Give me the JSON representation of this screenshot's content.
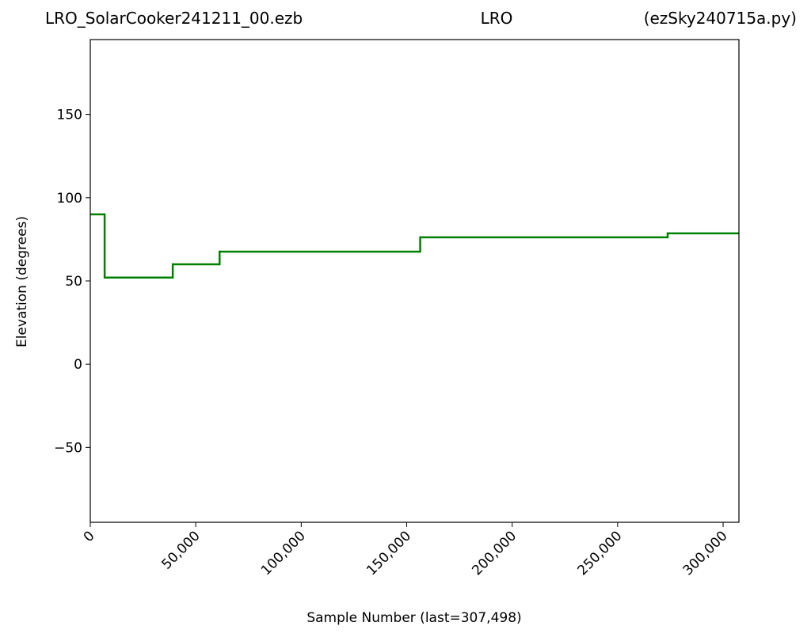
{
  "chart_data": {
    "type": "step",
    "title_left": "LRO_SolarCooker241211_00.ezb",
    "title": "LRO",
    "title_right": "(ezSky240715a.py)",
    "x_label": "Sample Number (last=307,498)",
    "y_label": "Elevation (degrees)",
    "x": [
      0,
      6800,
      39100,
      61300,
      156400,
      273700
    ],
    "values": [
      90,
      52,
      60,
      67.6,
      76.2,
      78.6
    ],
    "color": "#008000",
    "xlim": [
      0,
      307498
    ],
    "ylim": [
      -95,
      195
    ],
    "xticks": [
      0,
      {
        "value": 50000,
        "label": "50,000"
      },
      {
        "value": 100000,
        "label": "100,000"
      },
      {
        "value": 150000,
        "label": "150,000"
      },
      {
        "value": 200000,
        "label": "200,000"
      },
      {
        "value": 250000,
        "label": "250,000"
      },
      {
        "value": 300000,
        "label": "300,000"
      }
    ],
    "yticks": [
      {
        "value": -50,
        "label": "−50"
      },
      0,
      50,
      100,
      150
    ],
    "grid": false
  }
}
